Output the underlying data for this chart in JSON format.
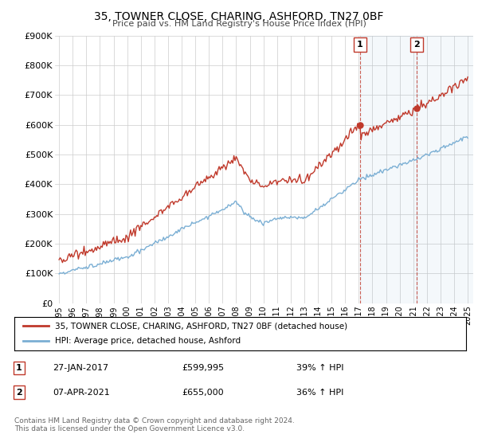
{
  "title": "35, TOWNER CLOSE, CHARING, ASHFORD, TN27 0BF",
  "subtitle": "Price paid vs. HM Land Registry's House Price Index (HPI)",
  "ylim": [
    0,
    900000
  ],
  "yticks": [
    0,
    100000,
    200000,
    300000,
    400000,
    500000,
    600000,
    700000,
    800000,
    900000
  ],
  "ytick_labels": [
    "£0",
    "£100K",
    "£200K",
    "£300K",
    "£400K",
    "£500K",
    "£600K",
    "£700K",
    "£800K",
    "£900K"
  ],
  "hpi_color": "#7bafd4",
  "price_color": "#c0392b",
  "point1_year": 2017.08,
  "point1_price": 599995,
  "point2_year": 2021.27,
  "point2_price": 655000,
  "legend_line1": "35, TOWNER CLOSE, CHARING, ASHFORD, TN27 0BF (detached house)",
  "legend_line2": "HPI: Average price, detached house, Ashford",
  "footnote": "Contains HM Land Registry data © Crown copyright and database right 2024.\nThis data is licensed under the Open Government Licence v3.0.",
  "background_color": "#ffffff",
  "grid_color": "#cccccc",
  "table_row1": [
    "1",
    "27-JAN-2017",
    "£599,995",
    "39% ↑ HPI"
  ],
  "table_row2": [
    "2",
    "07-APR-2021",
    "£655,000",
    "36% ↑ HPI"
  ]
}
